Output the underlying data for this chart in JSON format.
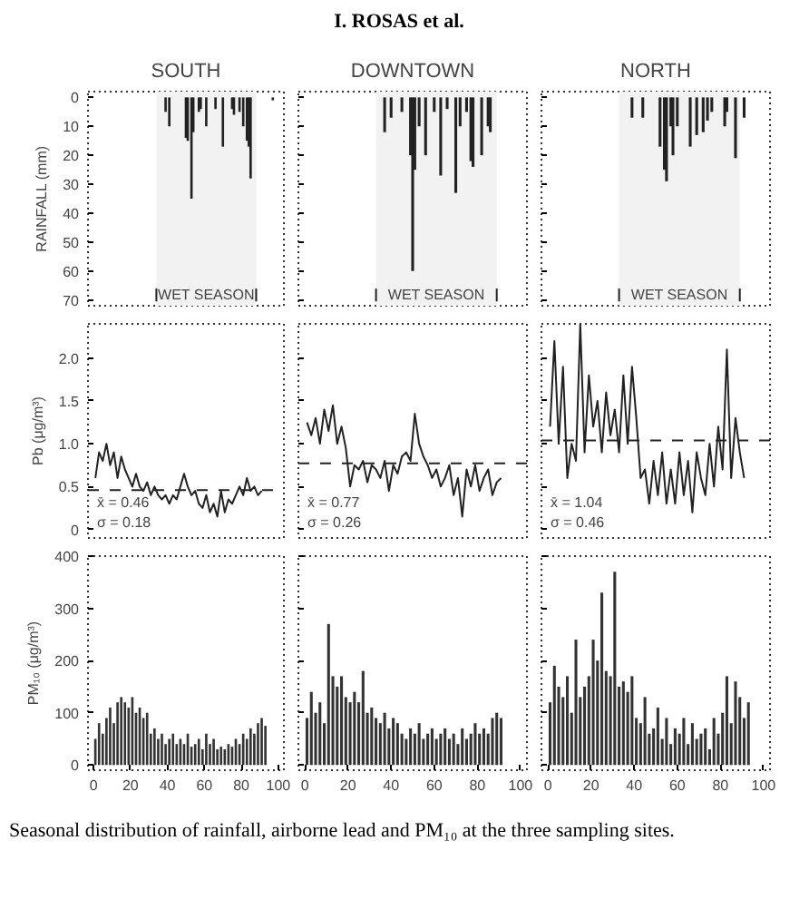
{
  "chart_data": [
    {
      "type": "bar",
      "title": "SOUTH",
      "ylabel": "RAINFALL (mm)",
      "color": "#222222",
      "x": [
        39,
        41,
        50,
        51,
        53,
        54,
        57,
        58,
        61,
        66,
        70,
        75,
        76,
        79,
        81,
        83,
        84,
        85,
        97
      ],
      "values": [
        5,
        10,
        14,
        15,
        35,
        12,
        5,
        4,
        10,
        4,
        17,
        4,
        6,
        5,
        10,
        15,
        17,
        28,
        1
      ],
      "annotations": [
        "I. ROSAS et al."
      ],
      "bands": [
        {
          "axis": "x",
          "from": 34,
          "to": 88,
          "label": "WET SEASON",
          "color": "#f2f2f2"
        }
      ],
      "xlim": [
        -3,
        103
      ],
      "ylim": [
        72,
        -2
      ],
      "xticks": [
        0,
        20,
        40,
        60,
        80,
        100
      ],
      "yticks": [
        0,
        10,
        20,
        30,
        40,
        50,
        60,
        70
      ],
      "tick_labels": "y"
    },
    {
      "type": "bar",
      "title": "DOWNTOWN",
      "color": "#222222",
      "x": [
        37,
        40,
        45,
        49,
        50,
        51,
        53,
        56,
        60,
        63,
        66,
        70,
        72,
        75,
        77,
        78,
        82,
        85,
        86
      ],
      "values": [
        12,
        7,
        5,
        20,
        60,
        25,
        10,
        20,
        5,
        27,
        4,
        33,
        10,
        5,
        22,
        24,
        20,
        10,
        12
      ],
      "bands": [
        {
          "axis": "x",
          "from": 33,
          "to": 89,
          "label": "WET SEASON",
          "color": "#f2f2f2"
        }
      ],
      "xlim": [
        -3,
        103
      ],
      "ylim": [
        72,
        -2
      ],
      "xticks": [
        0,
        20,
        40,
        60,
        80,
        100
      ],
      "yticks": [
        0,
        10,
        20,
        30,
        40,
        50,
        60,
        70
      ],
      "tick_labels": false
    },
    {
      "type": "bar",
      "title": "NORTH",
      "color": "#222222",
      "x": [
        39,
        44,
        52,
        54,
        55,
        57,
        58,
        60,
        66,
        69,
        72,
        74,
        76,
        82,
        83,
        87,
        91
      ],
      "values": [
        7,
        7,
        17,
        25,
        29,
        10,
        20,
        10,
        17,
        13,
        12,
        8,
        5,
        10,
        5,
        21,
        7
      ],
      "bands": [
        {
          "axis": "x",
          "from": 33,
          "to": 89,
          "label": "WET SEASON",
          "color": "#f2f2f2"
        }
      ],
      "xlim": [
        -3,
        103
      ],
      "ylim": [
        72,
        -2
      ],
      "xticks": [
        0,
        20,
        40,
        60,
        80,
        100
      ],
      "yticks": [
        0,
        10,
        20,
        30,
        40,
        50,
        60,
        70
      ],
      "tick_labels": false
    },
    {
      "type": "line",
      "ylabel": "Pb (μg/m³)",
      "color": "#222222",
      "annotations": [
        "x̄ = 0.46",
        "σ = 0.18"
      ],
      "x": [
        1,
        3,
        5,
        7,
        9,
        11,
        13,
        15,
        17,
        19,
        21,
        23,
        25,
        27,
        29,
        31,
        33,
        35,
        37,
        39,
        41,
        43,
        45,
        47,
        49,
        51,
        53,
        55,
        57,
        59,
        61,
        63,
        65,
        67,
        69,
        71,
        73,
        75,
        77,
        79,
        81,
        83,
        85,
        87,
        89,
        91
      ],
      "values": [
        0.6,
        0.9,
        0.8,
        1.0,
        0.75,
        0.9,
        0.6,
        0.85,
        0.7,
        0.6,
        0.5,
        0.65,
        0.5,
        0.45,
        0.55,
        0.4,
        0.5,
        0.4,
        0.35,
        0.4,
        0.3,
        0.4,
        0.35,
        0.5,
        0.65,
        0.5,
        0.4,
        0.45,
        0.3,
        0.25,
        0.4,
        0.2,
        0.3,
        0.15,
        0.45,
        0.2,
        0.35,
        0.3,
        0.4,
        0.5,
        0.4,
        0.6,
        0.45,
        0.5,
        0.4,
        0.45
      ],
      "ref_lines": [
        {
          "axis": "y",
          "value": 0.46,
          "line_style": "dashed"
        }
      ],
      "xlim": [
        -3,
        103
      ],
      "ylim": [
        -0.1,
        2.4
      ],
      "xticks": [
        0,
        20,
        40,
        60,
        80,
        100
      ],
      "yticks": [
        0,
        0.5,
        {
          "value": 1,
          "label": "1.0"
        },
        1.5,
        {
          "value": 2,
          "label": "2.0"
        }
      ],
      "tick_labels": "y"
    },
    {
      "type": "line",
      "color": "#222222",
      "annotations": [
        "x̄ = 0.77",
        "σ = 0.26"
      ],
      "x": [
        1,
        3,
        5,
        7,
        9,
        11,
        13,
        15,
        17,
        19,
        21,
        23,
        25,
        27,
        29,
        31,
        33,
        35,
        37,
        39,
        41,
        43,
        45,
        47,
        49,
        51,
        53,
        55,
        57,
        59,
        61,
        63,
        65,
        67,
        69,
        71,
        73,
        75,
        77,
        79,
        81,
        83,
        85,
        87,
        89,
        91
      ],
      "values": [
        1.25,
        1.1,
        1.3,
        1.0,
        1.4,
        1.15,
        1.45,
        1.0,
        1.2,
        0.95,
        0.5,
        0.75,
        0.7,
        0.8,
        0.55,
        0.75,
        0.7,
        0.6,
        0.8,
        0.45,
        0.75,
        0.65,
        0.85,
        0.9,
        0.8,
        1.35,
        1.0,
        0.85,
        0.75,
        0.6,
        0.7,
        0.5,
        0.6,
        0.75,
        0.4,
        0.6,
        0.15,
        0.7,
        0.5,
        0.75,
        0.45,
        0.6,
        0.7,
        0.4,
        0.55,
        0.6
      ],
      "ref_lines": [
        {
          "axis": "y",
          "value": 0.77,
          "line_style": "dashed"
        }
      ],
      "xlim": [
        -3,
        103
      ],
      "ylim": [
        -0.1,
        2.4
      ],
      "xticks": [
        0,
        20,
        40,
        60,
        80,
        100
      ],
      "yticks": [
        0,
        0.5,
        1,
        1.5,
        2
      ],
      "tick_labels": false
    },
    {
      "type": "line",
      "color": "#222222",
      "annotations": [
        "x̄ = 1.04",
        "σ = 0.46"
      ],
      "x": [
        1,
        3,
        5,
        7,
        9,
        11,
        13,
        15,
        17,
        19,
        21,
        23,
        25,
        27,
        29,
        31,
        33,
        35,
        37,
        39,
        41,
        43,
        45,
        47,
        49,
        51,
        53,
        55,
        57,
        59,
        61,
        63,
        65,
        67,
        69,
        71,
        73,
        75,
        77,
        79,
        81,
        83,
        85,
        87,
        89,
        91
      ],
      "values": [
        1.2,
        2.2,
        1.0,
        1.9,
        0.6,
        1.0,
        0.8,
        2.4,
        0.9,
        1.8,
        1.2,
        1.5,
        0.9,
        1.6,
        1.1,
        1.4,
        0.9,
        1.8,
        1.0,
        1.9,
        1.3,
        0.6,
        0.7,
        0.3,
        0.8,
        0.4,
        0.9,
        0.3,
        0.7,
        0.3,
        0.9,
        0.4,
        0.8,
        0.2,
        0.9,
        0.6,
        0.4,
        1.0,
        0.5,
        1.2,
        0.7,
        2.1,
        0.6,
        1.3,
        0.9,
        0.6
      ],
      "ref_lines": [
        {
          "axis": "y",
          "value": 1.04,
          "line_style": "dashed"
        }
      ],
      "xlim": [
        -3,
        103
      ],
      "ylim": [
        -0.1,
        2.4
      ],
      "xticks": [
        0,
        20,
        40,
        60,
        80,
        100
      ],
      "yticks": [
        0,
        0.5,
        1,
        1.5,
        2
      ],
      "tick_labels": false
    },
    {
      "type": "bar",
      "ylabel": "PM₁₀ (μg/m³)",
      "color": "#333333",
      "x": [
        1,
        3,
        5,
        7,
        9,
        11,
        13,
        15,
        17,
        19,
        21,
        23,
        25,
        27,
        29,
        31,
        33,
        35,
        37,
        39,
        41,
        43,
        45,
        47,
        49,
        51,
        53,
        55,
        57,
        59,
        61,
        63,
        65,
        67,
        69,
        71,
        73,
        75,
        77,
        79,
        81,
        83,
        85,
        87,
        89,
        91,
        93
      ],
      "values": [
        50,
        80,
        60,
        90,
        110,
        80,
        120,
        130,
        120,
        110,
        130,
        100,
        110,
        90,
        100,
        60,
        70,
        50,
        60,
        40,
        50,
        60,
        40,
        50,
        40,
        60,
        35,
        40,
        50,
        30,
        60,
        40,
        50,
        30,
        35,
        30,
        40,
        35,
        50,
        40,
        60,
        50,
        70,
        60,
        80,
        90,
        75
      ],
      "xlim": [
        -3,
        103
      ],
      "ylim": [
        -10,
        400
      ],
      "xticks": [
        0,
        20,
        40,
        60,
        80,
        100
      ],
      "yticks": [
        0,
        100,
        200,
        300,
        400
      ]
    },
    {
      "type": "bar",
      "color": "#333333",
      "x": [
        1,
        3,
        5,
        7,
        9,
        11,
        13,
        15,
        17,
        19,
        21,
        23,
        25,
        27,
        29,
        31,
        33,
        35,
        37,
        39,
        41,
        43,
        45,
        47,
        49,
        51,
        53,
        55,
        57,
        59,
        61,
        63,
        65,
        67,
        69,
        71,
        73,
        75,
        77,
        79,
        81,
        83,
        85,
        87,
        89,
        91
      ],
      "values": [
        90,
        140,
        100,
        120,
        80,
        270,
        170,
        150,
        170,
        130,
        120,
        140,
        120,
        180,
        100,
        110,
        90,
        80,
        100,
        70,
        90,
        80,
        60,
        50,
        70,
        60,
        80,
        50,
        60,
        70,
        50,
        60,
        70,
        50,
        60,
        40,
        70,
        50,
        60,
        80,
        60,
        70,
        60,
        90,
        100,
        90
      ],
      "xlim": [
        -3,
        103
      ],
      "ylim": [
        -10,
        400
      ],
      "xticks": [
        0,
        20,
        40,
        60,
        80,
        100
      ],
      "yticks": [
        0,
        100,
        200,
        300,
        400
      ],
      "tick_labels": "x"
    },
    {
      "type": "bar",
      "color": "#333333",
      "annotations": [
        "Seasonal distribution of rainfall, airborne lead and PM₁₀ at the three sampling sites."
      ],
      "x": [
        1,
        3,
        5,
        7,
        9,
        11,
        13,
        15,
        17,
        19,
        21,
        23,
        25,
        27,
        29,
        31,
        33,
        35,
        37,
        39,
        41,
        43,
        45,
        47,
        49,
        51,
        53,
        55,
        57,
        59,
        61,
        63,
        65,
        67,
        69,
        71,
        73,
        75,
        77,
        79,
        81,
        83,
        85,
        87,
        89,
        91,
        93
      ],
      "values": [
        120,
        190,
        150,
        130,
        170,
        100,
        240,
        130,
        150,
        170,
        240,
        200,
        330,
        180,
        170,
        370,
        150,
        160,
        140,
        170,
        90,
        80,
        130,
        60,
        70,
        110,
        50,
        90,
        40,
        70,
        60,
        90,
        40,
        80,
        50,
        60,
        70,
        30,
        90,
        60,
        100,
        170,
        80,
        160,
        130,
        90,
        120
      ],
      "xlim": [
        -3,
        103
      ],
      "ylim": [
        -10,
        400
      ],
      "xticks": [
        0,
        20,
        40,
        60,
        80,
        100
      ],
      "yticks": [
        0,
        100,
        200,
        300,
        400
      ],
      "tick_labels": "x"
    }
  ]
}
